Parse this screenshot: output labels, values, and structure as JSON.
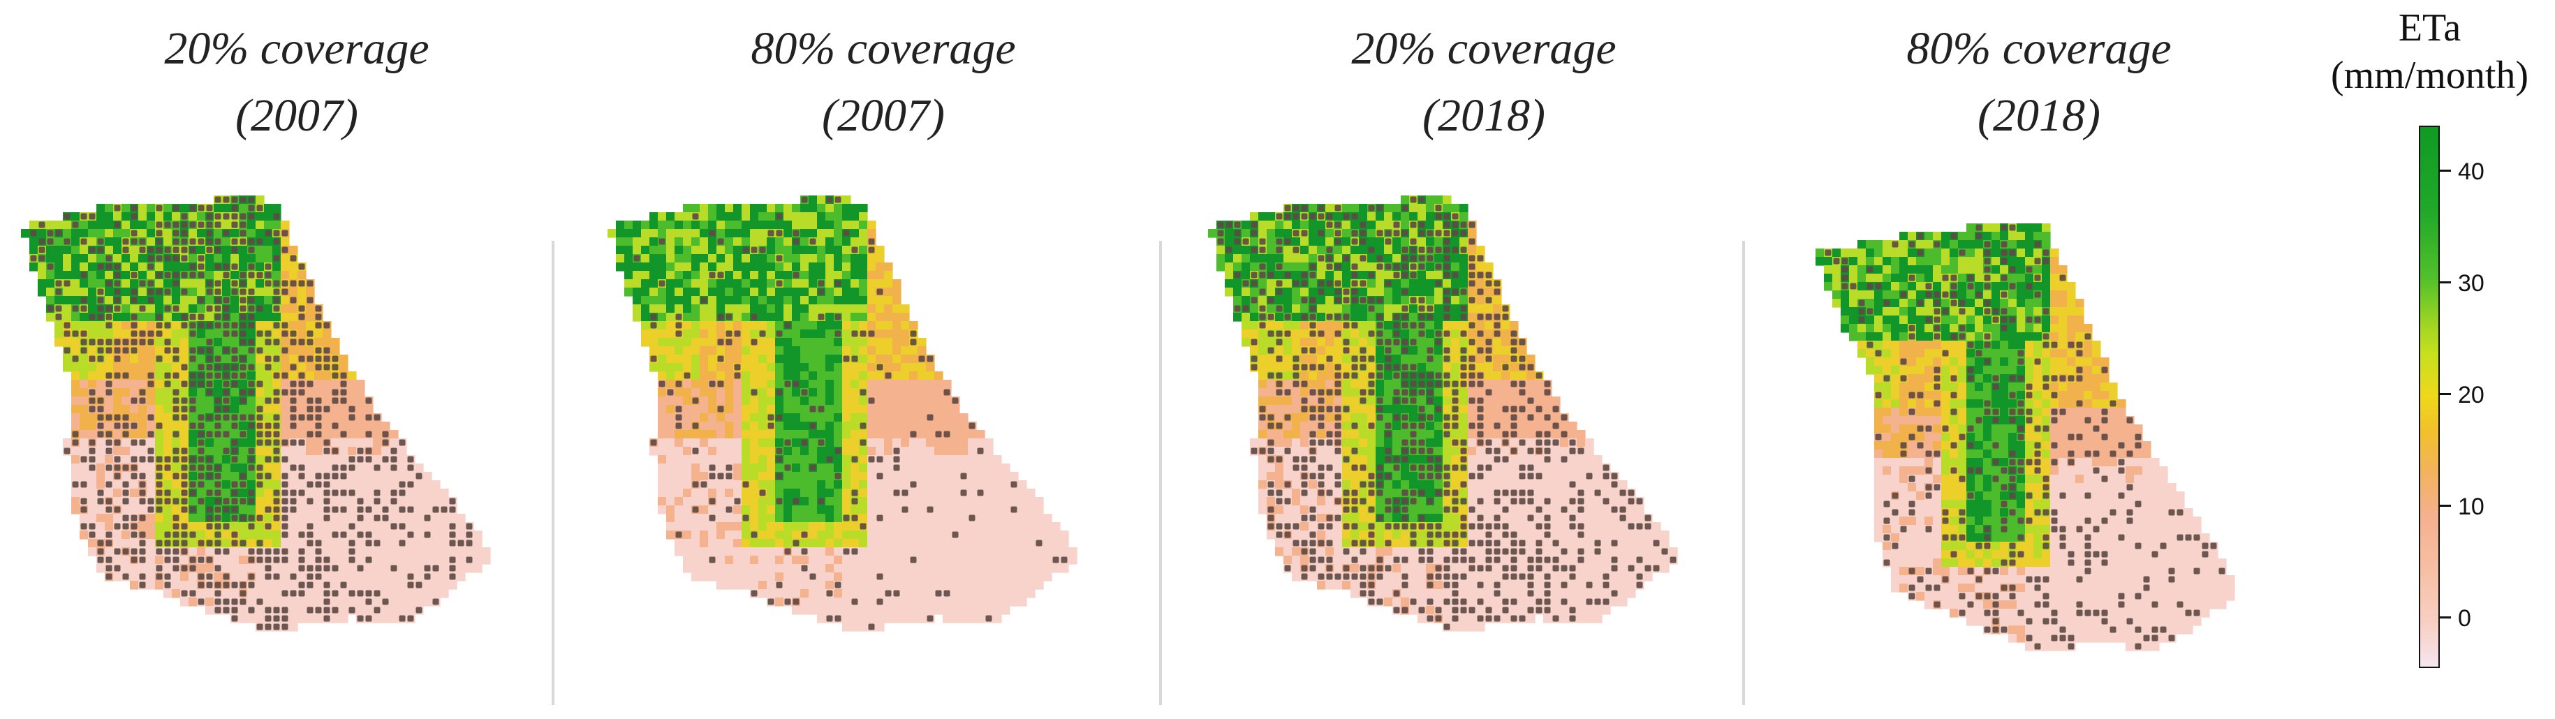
{
  "panels": [
    {
      "title_line1": "20% coverage",
      "title_line2": "(2007)",
      "variant": "low",
      "year": "2007",
      "dots": "heavy"
    },
    {
      "title_line1": "80% coverage",
      "title_line2": "(2007)",
      "variant": "low",
      "year": "2007",
      "dots": "light"
    },
    {
      "title_line1": "20% coverage",
      "title_line2": "(2018)",
      "variant": "high",
      "year": "2018",
      "dots": "heavy"
    },
    {
      "title_line1": "80% coverage",
      "title_line2": "(2018)",
      "variant": "high",
      "year": "2018",
      "dots": "medium"
    }
  ],
  "legend": {
    "title_line1": "ETa",
    "title_line2": "(mm/month)",
    "ticks": [
      "40",
      "30",
      "20",
      "10",
      "0"
    ],
    "range": [
      -3,
      44
    ]
  },
  "colors": {
    "pink": "#f8d3cb",
    "salmon": "#f4b28f",
    "orange": "#f2b24b",
    "yellow": "#eccf2a",
    "lime": "#b8dc27",
    "green": "#4cbc2c",
    "dark_green": "#12962a",
    "dot": "#5e4b45"
  }
}
